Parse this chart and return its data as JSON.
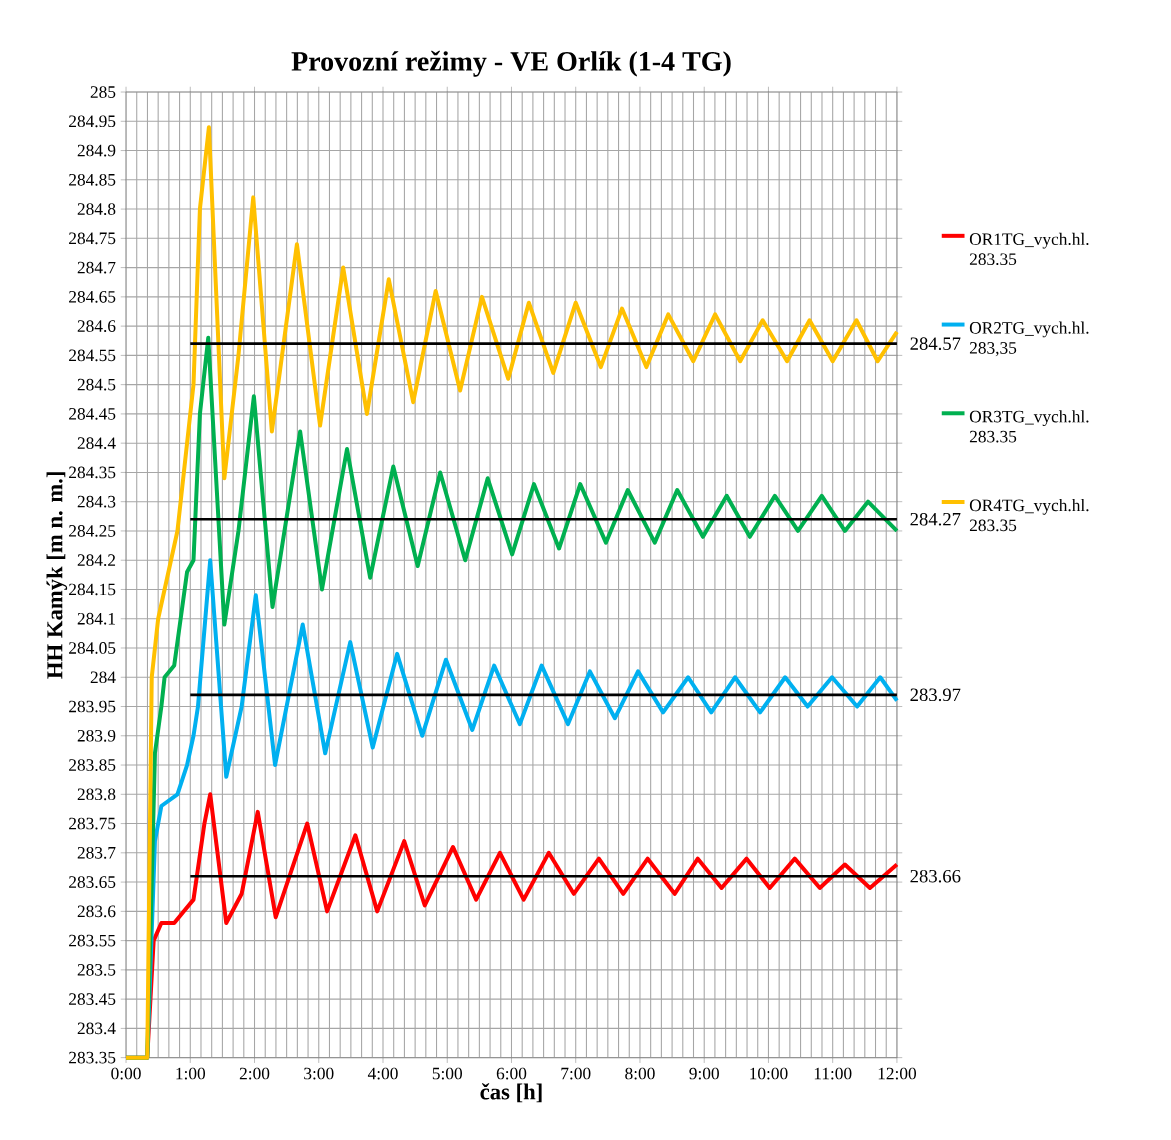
{
  "chart_data": {
    "type": "line",
    "title": "Provozní režimy - VE Orlík (1-4 TG)",
    "xlabel": "čas [h]",
    "ylabel": "HH Kamýk [m n. m.]",
    "xlim": [
      0,
      12
    ],
    "xticks": [
      {
        "value": 0,
        "label": "0:00"
      },
      {
        "value": 1,
        "label": "1:00"
      },
      {
        "value": 2,
        "label": "2:00"
      },
      {
        "value": 3,
        "label": "3:00"
      },
      {
        "value": 4,
        "label": "4:00"
      },
      {
        "value": 5,
        "label": "5:00"
      },
      {
        "value": 6,
        "label": "6:00"
      },
      {
        "value": 7,
        "label": "7:00"
      },
      {
        "value": 8,
        "label": "8:00"
      },
      {
        "value": 9,
        "label": "9:00"
      },
      {
        "value": 10,
        "label": "10:00"
      },
      {
        "value": 11,
        "label": "11:00"
      },
      {
        "value": 12,
        "label": "12:00"
      }
    ],
    "ylim": [
      283.35,
      285
    ],
    "yticks": [
      283.35,
      283.4,
      283.45,
      283.5,
      283.55,
      283.6,
      283.65,
      283.7,
      283.75,
      283.8,
      283.85,
      283.9,
      283.95,
      284,
      284.05,
      284.1,
      284.15,
      284.2,
      284.25,
      284.3,
      284.35,
      284.4,
      284.45,
      284.5,
      284.55,
      284.6,
      284.65,
      284.7,
      284.75,
      284.8,
      284.85,
      284.9,
      284.95,
      285
    ],
    "grid": true,
    "legend": "right",
    "marker": "none",
    "line_style": "solid",
    "series": [
      {
        "name": "OR1TG_vych.hl. 283.35",
        "color": "#ff0000",
        "x": [
          0,
          0.33,
          0.43,
          0.55,
          0.75,
          0.9,
          1.05,
          1.22,
          1.31,
          1.56,
          1.8,
          2.05,
          2.33,
          2.82,
          3.13,
          3.57,
          3.91,
          4.33,
          4.65,
          5.09,
          5.45,
          5.82,
          6.19,
          6.58,
          6.97,
          7.36,
          7.74,
          8.12,
          8.54,
          8.9,
          9.27,
          9.66,
          10.02,
          10.41,
          10.8,
          11.19,
          11.58,
          12
        ],
        "values": [
          283.35,
          283.35,
          283.55,
          283.58,
          283.58,
          283.6,
          283.62,
          283.75,
          283.8,
          283.58,
          283.63,
          283.77,
          283.59,
          283.75,
          283.6,
          283.73,
          283.6,
          283.72,
          283.61,
          283.71,
          283.62,
          283.7,
          283.62,
          283.7,
          283.63,
          283.69,
          283.63,
          283.69,
          283.63,
          283.69,
          283.64,
          283.69,
          283.64,
          283.69,
          283.64,
          283.68,
          283.64,
          283.68
        ]
      },
      {
        "name": "OR2TG_vych.hl. 283,35",
        "color": "#00b0f0",
        "x": [
          0,
          0.33,
          0.45,
          0.55,
          0.8,
          0.95,
          1.05,
          1.12,
          1.31,
          1.56,
          1.8,
          2.02,
          2.32,
          2.75,
          3.1,
          3.49,
          3.84,
          4.22,
          4.61,
          4.98,
          5.39,
          5.73,
          6.13,
          6.47,
          6.88,
          7.22,
          7.61,
          7.97,
          8.36,
          8.75,
          9.11,
          9.48,
          9.87,
          10.26,
          10.61,
          10.99,
          11.38,
          11.74,
          12
        ],
        "values": [
          283.35,
          283.35,
          283.72,
          283.78,
          283.8,
          283.85,
          283.9,
          283.95,
          284.2,
          283.83,
          283.95,
          284.14,
          283.85,
          284.09,
          283.87,
          284.06,
          283.88,
          284.04,
          283.9,
          284.03,
          283.91,
          284.02,
          283.92,
          284.02,
          283.92,
          284.01,
          283.93,
          284.01,
          283.94,
          284,
          283.94,
          284,
          283.94,
          284,
          283.95,
          284,
          283.95,
          284,
          283.96
        ]
      },
      {
        "name": "OR3TG_vych.hl. 283.35",
        "color": "#00b050",
        "x": [
          0,
          0.33,
          0.45,
          0.55,
          0.6,
          0.75,
          0.85,
          0.95,
          1.05,
          1.15,
          1.28,
          1.53,
          1.75,
          1.99,
          2.28,
          2.71,
          3.05,
          3.44,
          3.8,
          4.16,
          4.54,
          4.89,
          5.28,
          5.63,
          6.01,
          6.35,
          6.74,
          7.07,
          7.47,
          7.81,
          8.23,
          8.58,
          8.98,
          9.35,
          9.71,
          10.1,
          10.46,
          10.83,
          11.19,
          11.55,
          12
        ],
        "values": [
          283.35,
          283.35,
          283.87,
          283.95,
          284,
          284.02,
          284.1,
          284.18,
          284.2,
          284.45,
          284.58,
          284.09,
          284.25,
          284.48,
          284.12,
          284.42,
          284.15,
          284.39,
          284.17,
          284.36,
          284.19,
          284.35,
          284.2,
          284.34,
          284.21,
          284.33,
          284.22,
          284.33,
          284.23,
          284.32,
          284.23,
          284.32,
          284.24,
          284.31,
          284.24,
          284.31,
          284.25,
          284.31,
          284.25,
          284.3,
          284.25
        ]
      },
      {
        "name": "OR4TG_vych.hl. 283.35",
        "color": "#ffc000",
        "x": [
          0,
          0.33,
          0.4,
          0.5,
          0.7,
          0.8,
          0.95,
          1.05,
          1.15,
          1.29,
          1.53,
          1.75,
          1.98,
          2.27,
          2.66,
          3.02,
          3.38,
          3.75,
          4.09,
          4.47,
          4.82,
          5.2,
          5.54,
          5.95,
          6.27,
          6.65,
          7,
          7.39,
          7.72,
          8.1,
          8.44,
          8.83,
          9.17,
          9.56,
          9.91,
          10.29,
          10.64,
          11,
          11.37,
          11.7,
          12
        ],
        "values": [
          283.35,
          283.35,
          284,
          284.1,
          284.2,
          284.25,
          284.4,
          284.5,
          284.8,
          284.94,
          284.34,
          284.55,
          284.82,
          284.42,
          284.74,
          284.43,
          284.7,
          284.45,
          284.68,
          284.47,
          284.66,
          284.49,
          284.65,
          284.51,
          284.64,
          284.52,
          284.64,
          284.53,
          284.63,
          284.53,
          284.62,
          284.54,
          284.62,
          284.54,
          284.61,
          284.54,
          284.61,
          284.54,
          284.61,
          284.54,
          284.59
        ]
      },
      {
        "name": "284.57",
        "type": "line",
        "color": "#000000",
        "x": [
          1,
          12
        ],
        "values": [
          284.57,
          284.57
        ]
      },
      {
        "name": "284.27",
        "type": "line",
        "color": "#000000",
        "x": [
          1,
          12
        ],
        "values": [
          284.27,
          284.27
        ]
      },
      {
        "name": "283.97",
        "type": "line",
        "color": "#000000",
        "x": [
          1,
          12
        ],
        "values": [
          283.97,
          283.97
        ]
      },
      {
        "name": "283.66",
        "type": "line",
        "color": "#000000",
        "x": [
          1,
          12
        ],
        "values": [
          283.66,
          283.66
        ]
      }
    ]
  }
}
